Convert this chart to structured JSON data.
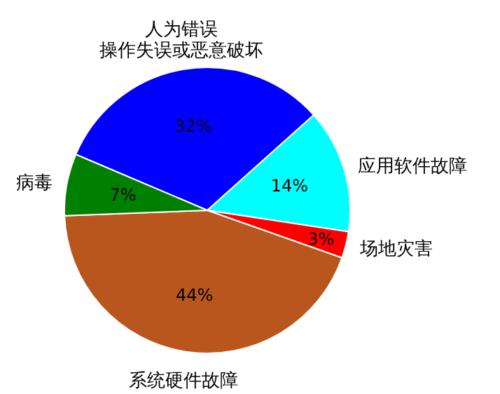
{
  "chart_data": {
    "type": "pie",
    "categories": [
      "人为错误操作失误或恶意破坏",
      "应用软件故障",
      "场地灾害",
      "系统硬件故障",
      "病毒"
    ],
    "values": [
      32,
      14,
      3,
      44,
      7
    ],
    "colors": [
      "#0000ff",
      "#00ffff",
      "#ff0000",
      "#b8561e",
      "#008000"
    ],
    "value_labels": [
      "32%",
      "14%",
      "3%",
      "44%",
      "7%"
    ]
  }
}
